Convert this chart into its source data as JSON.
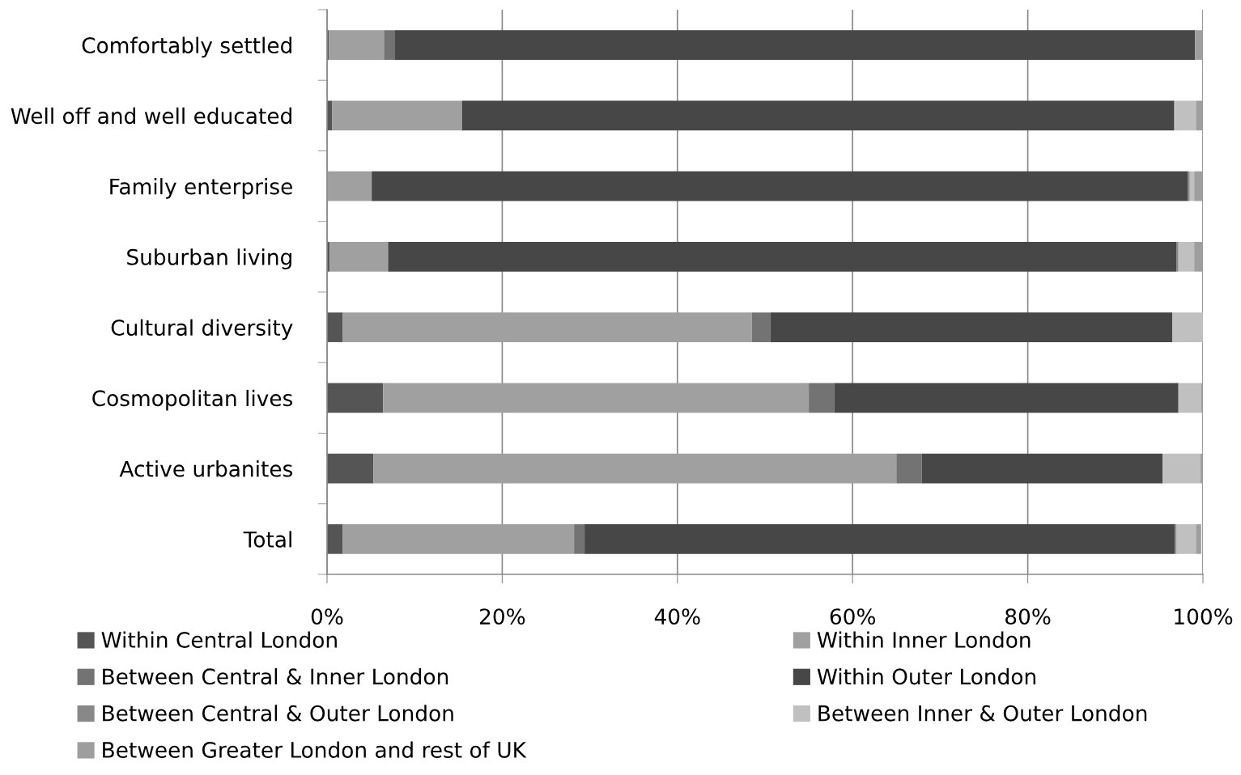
{
  "chart_data": {
    "type": "bar",
    "orientation": "horizontal",
    "stacked": true,
    "categories": [
      "Comfortably settled",
      "Well off and well educated",
      "Family enterprise",
      "Suburban living",
      "Cultural diversity",
      "Cosmopolitan lives",
      "Active urbanites",
      "Total"
    ],
    "series": [
      {
        "name": "Within Central London",
        "color": "#555555",
        "values": [
          0.2,
          0.6,
          0,
          0.3,
          1.8,
          6.4,
          5.3,
          1.8
        ]
      },
      {
        "name": "Within Inner London",
        "color": "#a0a0a0",
        "values": [
          6.3,
          14.8,
          5.1,
          6.6,
          46.7,
          48.6,
          59.7,
          26.4
        ]
      },
      {
        "name": "Between Central & Inner London",
        "color": "#737373",
        "values": [
          1.2,
          0,
          0,
          0.1,
          2.1,
          2.9,
          2.9,
          1.2
        ]
      },
      {
        "name": "Within Outer London",
        "color": "#474747",
        "values": [
          91.4,
          81.3,
          93.2,
          90.0,
          45.9,
          39.3,
          27.5,
          67.4
        ]
      },
      {
        "name": "Between Central & Outer London",
        "color": "#888888",
        "values": [
          0,
          0.1,
          0.2,
          0.2,
          0,
          0,
          0,
          0.2
        ]
      },
      {
        "name": "Between Inner & Outer London",
        "color": "#c0c0c0",
        "values": [
          0,
          2.4,
          0.5,
          1.8,
          3.5,
          2.6,
          4.3,
          2.2
        ]
      },
      {
        "name": "Between Greater London and rest of UK",
        "color": "#9e9e9e",
        "values": [
          0.9,
          0.8,
          1.0,
          1.0,
          0,
          0.2,
          0.3,
          0.6
        ]
      }
    ],
    "xlim": [
      0,
      100
    ],
    "xticks": [
      {
        "value": 0,
        "label": "0%"
      },
      {
        "value": 20,
        "label": "20%"
      },
      {
        "value": 40,
        "label": "40%"
      },
      {
        "value": 60,
        "label": "60%"
      },
      {
        "value": 80,
        "label": "80%"
      },
      {
        "value": 100,
        "label": "100%"
      }
    ],
    "grid": "x",
    "legend": "bottom"
  }
}
